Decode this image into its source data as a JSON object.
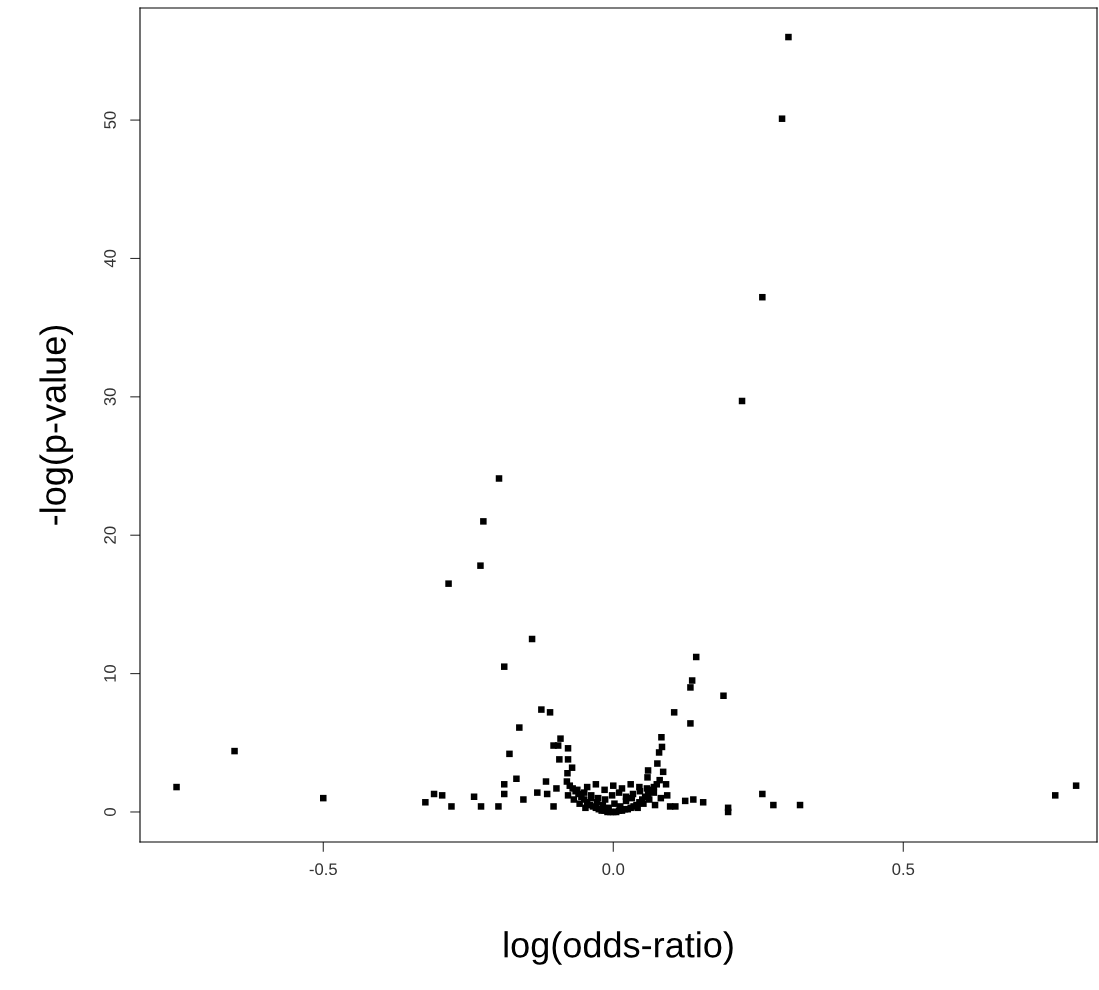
{
  "chart_data": {
    "type": "scatter",
    "xlabel": "log(odds-ratio)",
    "ylabel": "-log(p-value)",
    "xlim": [
      -0.816,
      0.834
    ],
    "xticks": [
      {
        "value": -0.5,
        "label": "-0.5"
      },
      {
        "value": 0.0,
        "label": "0.0"
      },
      {
        "value": 0.5,
        "label": "0.5"
      }
    ],
    "ylim": [
      -2.17,
      58.1
    ],
    "yticks": [
      0,
      10,
      20,
      30,
      40,
      50
    ],
    "grid": false,
    "marker": "square",
    "color": "#000000",
    "x": [
      -0.753,
      -0.653,
      -0.5,
      0.302,
      0.291,
      0.257,
      0.222,
      -0.197,
      -0.224,
      -0.229,
      -0.284,
      -0.14,
      0.143,
      -0.188,
      0.136,
      0.133,
      0.19,
      -0.124,
      -0.109,
      0.105,
      0.133,
      -0.162,
      -0.091,
      0.083,
      -0.103,
      -0.095,
      -0.078,
      0.084,
      0.079,
      -0.179,
      -0.093,
      -0.078,
      0.076,
      -0.079,
      -0.071,
      0.06,
      0.059,
      0.086,
      -0.167,
      -0.188,
      -0.116,
      0.091,
      -0.309,
      -0.295,
      -0.24,
      -0.188,
      -0.131,
      -0.114,
      -0.098,
      -0.155,
      -0.324,
      -0.279,
      -0.228,
      -0.198,
      -0.103,
      0.093,
      0.098,
      0.107,
      0.124,
      0.138,
      0.155,
      0.198,
      0.198,
      0.257,
      0.276,
      0.322,
      0.762,
      0.798,
      -0.08,
      -0.075,
      -0.07,
      -0.065,
      -0.06,
      -0.055,
      -0.05,
      -0.045,
      -0.04,
      -0.035,
      -0.03,
      -0.025,
      -0.02,
      -0.015,
      -0.01,
      -0.005,
      0.0,
      0.005,
      0.01,
      0.015,
      0.02,
      0.025,
      0.03,
      0.035,
      0.04,
      0.045,
      0.05,
      0.055,
      0.06,
      0.065,
      0.07,
      0.075,
      0.08,
      -0.078,
      -0.068,
      -0.058,
      -0.048,
      -0.038,
      -0.028,
      -0.018,
      -0.008,
      0.002,
      0.012,
      0.022,
      0.032,
      0.042,
      0.052,
      0.062,
      0.072,
      0.082,
      -0.062,
      -0.05,
      -0.038,
      -0.026,
      -0.014,
      -0.002,
      0.01,
      0.022,
      0.034,
      0.046,
      0.058,
      0.07,
      -0.045,
      -0.03,
      -0.015,
      0.0,
      0.015,
      0.03,
      0.045
    ],
    "values": [
      1.8,
      4.4,
      1.0,
      56.0,
      50.1,
      37.2,
      29.7,
      24.1,
      21.0,
      17.8,
      16.5,
      12.5,
      11.2,
      10.5,
      9.5,
      9.0,
      8.4,
      7.4,
      7.2,
      7.2,
      6.4,
      6.1,
      5.3,
      5.4,
      4.8,
      4.8,
      4.6,
      4.7,
      4.3,
      4.2,
      3.8,
      3.8,
      3.5,
      2.8,
      3.2,
      3.0,
      2.5,
      2.9,
      2.4,
      2.0,
      2.2,
      2.0,
      1.3,
      1.2,
      1.1,
      1.3,
      1.4,
      1.3,
      1.7,
      0.9,
      0.7,
      0.4,
      0.4,
      0.4,
      0.4,
      1.2,
      0.4,
      0.4,
      0.8,
      0.9,
      0.7,
      0.3,
      0.0,
      1.3,
      0.5,
      0.5,
      1.2,
      1.9,
      2.2,
      1.9,
      1.7,
      1.5,
      1.3,
      1.1,
      0.9,
      0.7,
      0.5,
      0.4,
      0.3,
      0.2,
      0.1,
      0.1,
      0.0,
      0.0,
      0.0,
      0.0,
      0.1,
      0.1,
      0.2,
      0.2,
      0.3,
      0.4,
      0.5,
      0.7,
      0.9,
      1.1,
      1.3,
      1.6,
      1.8,
      2.0,
      2.3,
      1.2,
      0.9,
      0.6,
      0.3,
      1.0,
      0.7,
      0.5,
      0.3,
      0.6,
      0.4,
      0.8,
      1.0,
      0.3,
      0.6,
      0.9,
      0.5,
      1.0,
      1.6,
      1.4,
      1.2,
      1.0,
      0.9,
      1.2,
      1.4,
      1.1,
      1.3,
      1.5,
      1.7,
      1.4,
      1.8,
      2.0,
      1.6,
      1.9,
      1.7,
      2.0,
      1.8
    ]
  }
}
